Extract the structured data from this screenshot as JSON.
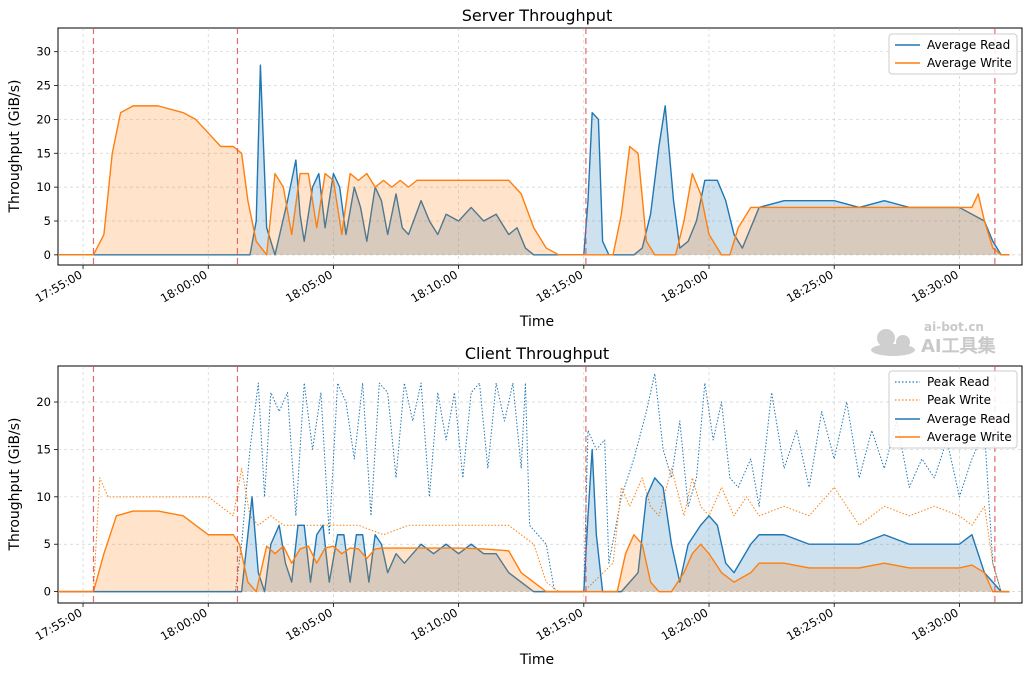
{
  "chart_data": [
    {
      "type": "area",
      "title": "Server Throughput",
      "xlabel": "Time",
      "ylabel": "Throughput (GiB/s)",
      "x_range": [
        "17:54:00",
        "18:32:30"
      ],
      "ylim": [
        -1.5,
        33.5
      ],
      "y_ticks": [
        0,
        5,
        10,
        15,
        20,
        25,
        30
      ],
      "x_ticks": [
        "17:55:00",
        "18:00:00",
        "18:05:00",
        "18:10:00",
        "18:15:00",
        "18:20:00",
        "18:25:00",
        "18:30:00"
      ],
      "grid": true,
      "legend_position": "top-right",
      "event_markers_x": [
        "17:55:25",
        "18:01:10",
        "18:15:05",
        "18:31:25"
      ],
      "series": [
        {
          "name": "Average Read",
          "color": "#1f77b4",
          "x": [
            "17:54:00",
            "17:55:30",
            "18:01:00",
            "18:01:40",
            "18:01:55",
            "18:02:05",
            "18:02:20",
            "18:02:40",
            "18:03:10",
            "18:03:30",
            "18:03:40",
            "18:03:50",
            "18:04:10",
            "18:04:25",
            "18:04:40",
            "18:05:00",
            "18:05:15",
            "18:05:30",
            "18:05:50",
            "18:06:05",
            "18:06:20",
            "18:06:40",
            "18:06:55",
            "18:07:10",
            "18:07:30",
            "18:07:45",
            "18:08:00",
            "18:08:30",
            "18:08:50",
            "18:09:10",
            "18:09:30",
            "18:10:00",
            "18:10:30",
            "18:11:00",
            "18:11:30",
            "18:12:00",
            "18:12:20",
            "18:12:40",
            "18:13:00",
            "18:15:00",
            "18:15:10",
            "18:15:20",
            "18:15:35",
            "18:15:45",
            "18:16:00",
            "18:16:30",
            "18:17:00",
            "18:17:20",
            "18:17:40",
            "18:18:00",
            "18:18:15",
            "18:18:35",
            "18:18:50",
            "18:19:10",
            "18:19:30",
            "18:19:50",
            "18:20:20",
            "18:20:40",
            "18:21:00",
            "18:21:20",
            "18:22:00",
            "18:23:00",
            "18:24:00",
            "18:25:00",
            "18:26:00",
            "18:27:00",
            "18:28:00",
            "18:29:00",
            "18:30:00",
            "18:30:30",
            "18:31:00",
            "18:31:20",
            "18:31:40",
            "18:32:00"
          ],
          "values": [
            0,
            0,
            0,
            0,
            5,
            28,
            4,
            0,
            8,
            14,
            6,
            2,
            10,
            12,
            4,
            12,
            10,
            3,
            10,
            7,
            2,
            10,
            8,
            3,
            9,
            4,
            3,
            8,
            5,
            3,
            6,
            5,
            7,
            5,
            6,
            3,
            4,
            1,
            0,
            0,
            8,
            21,
            20,
            2,
            0,
            0,
            0,
            1,
            6,
            16,
            22,
            8,
            1,
            2,
            5,
            11,
            11,
            8,
            3,
            1,
            7,
            8,
            8,
            8,
            7,
            8,
            7,
            7,
            7,
            6,
            5,
            2,
            0,
            0
          ]
        },
        {
          "name": "Average Write",
          "color": "#ff7f0e",
          "x": [
            "17:54:00",
            "17:55:25",
            "17:55:50",
            "17:56:10",
            "17:56:30",
            "17:57:00",
            "17:58:00",
            "17:59:00",
            "17:59:30",
            "18:00:00",
            "18:00:30",
            "18:01:00",
            "18:01:20",
            "18:01:35",
            "18:01:55",
            "18:02:20",
            "18:02:40",
            "18:03:00",
            "18:03:20",
            "18:03:40",
            "18:04:00",
            "18:04:20",
            "18:04:40",
            "18:05:00",
            "18:05:20",
            "18:05:40",
            "18:06:00",
            "18:06:20",
            "18:06:40",
            "18:07:00",
            "18:07:20",
            "18:07:40",
            "18:08:00",
            "18:08:20",
            "18:08:40",
            "18:09:00",
            "18:10:00",
            "18:11:00",
            "18:12:00",
            "18:12:30",
            "18:13:00",
            "18:13:30",
            "18:14:00",
            "18:15:00",
            "18:16:10",
            "18:16:30",
            "18:16:50",
            "18:17:10",
            "18:17:30",
            "18:17:50",
            "18:18:10",
            "18:18:40",
            "18:19:00",
            "18:19:20",
            "18:19:40",
            "18:20:00",
            "18:20:30",
            "18:20:50",
            "18:21:10",
            "18:21:40",
            "18:22:00",
            "18:23:00",
            "18:24:00",
            "18:25:00",
            "18:26:00",
            "18:27:00",
            "18:28:00",
            "18:29:00",
            "18:30:00",
            "18:30:30",
            "18:30:45",
            "18:31:00",
            "18:31:20",
            "18:31:40",
            "18:32:00"
          ],
          "values": [
            0,
            0,
            3,
            15,
            21,
            22,
            22,
            21,
            20,
            18,
            16,
            16,
            15,
            8,
            2,
            0,
            12,
            10,
            3,
            12,
            12,
            4,
            12,
            11,
            3,
            12,
            11,
            12,
            10,
            11,
            10,
            11,
            10,
            11,
            11,
            11,
            11,
            11,
            11,
            9,
            4,
            1,
            0,
            0,
            0,
            6,
            16,
            15,
            2,
            0,
            0,
            0,
            5,
            12,
            9,
            3,
            0,
            0,
            4,
            7,
            7,
            7,
            7,
            7,
            7,
            7,
            7,
            7,
            7,
            7,
            9,
            5,
            1,
            0,
            0
          ]
        }
      ]
    },
    {
      "type": "area",
      "title": "Client Throughput",
      "xlabel": "Time",
      "ylabel": "Throughput (GiB/s)",
      "x_range": [
        "17:54:00",
        "18:32:30"
      ],
      "ylim": [
        -1.2,
        23.8
      ],
      "y_ticks": [
        0,
        5,
        10,
        15,
        20
      ],
      "x_ticks": [
        "17:55:00",
        "18:00:00",
        "18:05:00",
        "18:10:00",
        "18:15:00",
        "18:20:00",
        "18:25:00",
        "18:30:00"
      ],
      "grid": true,
      "legend_position": "top-right",
      "event_markers_x": [
        "17:55:25",
        "18:01:10",
        "18:15:05",
        "18:31:25"
      ],
      "series": [
        {
          "name": "Peak Read",
          "color": "#1f77b4",
          "style": "dotted",
          "x": [
            "17:54:00",
            "18:01:05",
            "18:01:20",
            "18:01:40",
            "18:02:00",
            "18:02:15",
            "18:02:30",
            "18:02:50",
            "18:03:10",
            "18:03:30",
            "18:03:50",
            "18:04:10",
            "18:04:30",
            "18:04:50",
            "18:05:10",
            "18:05:30",
            "18:05:50",
            "18:06:10",
            "18:06:30",
            "18:06:50",
            "18:07:10",
            "18:07:30",
            "18:07:50",
            "18:08:10",
            "18:08:30",
            "18:08:50",
            "18:09:10",
            "18:09:30",
            "18:09:50",
            "18:10:10",
            "18:10:30",
            "18:10:50",
            "18:11:10",
            "18:11:30",
            "18:11:50",
            "18:12:10",
            "18:12:30",
            "18:12:40",
            "18:12:50",
            "18:13:10",
            "18:13:30",
            "18:13:50",
            "18:14:00",
            "18:15:00",
            "18:15:10",
            "18:15:30",
            "18:15:50",
            "18:16:00",
            "18:16:30",
            "18:17:00",
            "18:17:30",
            "18:17:50",
            "18:18:10",
            "18:18:30",
            "18:18:50",
            "18:19:10",
            "18:19:30",
            "18:19:50",
            "18:20:10",
            "18:20:30",
            "18:20:50",
            "18:21:10",
            "18:21:40",
            "18:22:00",
            "18:22:30",
            "18:23:00",
            "18:23:30",
            "18:24:00",
            "18:24:30",
            "18:25:00",
            "18:25:30",
            "18:26:00",
            "18:26:30",
            "18:27:00",
            "18:27:30",
            "18:28:00",
            "18:28:30",
            "18:29:00",
            "18:29:30",
            "18:30:00",
            "18:30:30",
            "18:31:00",
            "18:31:20",
            "18:31:40",
            "18:32:00"
          ],
          "values": [
            0,
            0,
            5,
            15,
            22,
            10,
            21,
            19,
            21,
            8,
            22,
            15,
            21,
            6,
            22,
            20,
            14,
            22,
            8,
            22,
            21,
            12,
            22,
            18,
            22,
            10,
            21,
            16,
            21,
            12,
            21,
            22,
            13,
            22,
            18,
            22,
            13,
            22,
            7,
            6,
            5,
            0,
            0,
            0,
            17,
            15,
            16,
            3,
            10,
            14,
            19,
            23,
            15,
            12,
            18,
            9,
            12,
            22,
            16,
            20,
            12,
            11,
            14,
            9,
            21,
            13,
            17,
            11,
            19,
            14,
            20,
            12,
            17,
            13,
            18,
            11,
            14,
            12,
            16,
            10,
            14,
            17,
            3,
            0,
            0
          ]
        },
        {
          "name": "Peak Write",
          "color": "#ff7f0e",
          "style": "dotted",
          "x": [
            "17:54:00",
            "17:55:25",
            "17:55:40",
            "17:56:00",
            "17:57:00",
            "17:58:00",
            "17:59:00",
            "18:00:00",
            "18:01:00",
            "18:01:20",
            "18:01:40",
            "18:02:00",
            "18:02:30",
            "18:03:00",
            "18:04:00",
            "18:05:00",
            "18:06:00",
            "18:07:00",
            "18:08:00",
            "18:09:00",
            "18:10:00",
            "18:11:00",
            "18:12:00",
            "18:12:30",
            "18:13:00",
            "18:13:30",
            "18:14:00",
            "18:15:00",
            "18:16:10",
            "18:16:30",
            "18:16:50",
            "18:17:20",
            "18:17:40",
            "18:18:00",
            "18:18:30",
            "18:19:00",
            "18:19:20",
            "18:19:40",
            "18:20:00",
            "18:20:30",
            "18:21:00",
            "18:21:30",
            "18:22:00",
            "18:23:00",
            "18:24:00",
            "18:25:00",
            "18:26:00",
            "18:27:00",
            "18:28:00",
            "18:29:00",
            "18:30:00",
            "18:30:30",
            "18:31:00",
            "18:31:20",
            "18:31:40",
            "18:32:00"
          ],
          "values": [
            0,
            0,
            12,
            10,
            10,
            10,
            10,
            10,
            8,
            13,
            8,
            7,
            8,
            7,
            7,
            7,
            7,
            6,
            7,
            7,
            7,
            7,
            7,
            6,
            5,
            1,
            0,
            0,
            3,
            11,
            9,
            12,
            9,
            8,
            13,
            8,
            12,
            9,
            8,
            11,
            8,
            10,
            8,
            9,
            8,
            11,
            7,
            9,
            8,
            9,
            8,
            7,
            9,
            3,
            0,
            0
          ]
        },
        {
          "name": "Average Read",
          "color": "#1f77b4",
          "style": "solid",
          "x": [
            "17:54:00",
            "18:01:20",
            "18:01:45",
            "18:02:00",
            "18:02:15",
            "18:02:30",
            "18:02:50",
            "18:03:05",
            "18:03:20",
            "18:03:35",
            "18:03:50",
            "18:04:05",
            "18:04:20",
            "18:04:35",
            "18:04:50",
            "18:05:10",
            "18:05:25",
            "18:05:40",
            "18:05:55",
            "18:06:10",
            "18:06:25",
            "18:06:40",
            "18:06:55",
            "18:07:10",
            "18:07:30",
            "18:07:50",
            "18:08:10",
            "18:08:30",
            "18:09:00",
            "18:09:30",
            "18:10:00",
            "18:10:30",
            "18:11:00",
            "18:11:30",
            "18:12:00",
            "18:12:30",
            "18:13:00",
            "18:15:00",
            "18:15:10",
            "18:15:20",
            "18:15:30",
            "18:15:45",
            "18:16:00",
            "18:16:30",
            "18:17:10",
            "18:17:30",
            "18:17:50",
            "18:18:10",
            "18:18:30",
            "18:18:50",
            "18:19:10",
            "18:19:40",
            "18:20:00",
            "18:20:20",
            "18:20:40",
            "18:21:00",
            "18:21:40",
            "18:22:00",
            "18:23:00",
            "18:24:00",
            "18:25:00",
            "18:26:00",
            "18:27:00",
            "18:28:00",
            "18:29:00",
            "18:30:00",
            "18:30:30",
            "18:31:00",
            "18:31:20",
            "18:31:40",
            "18:32:00"
          ],
          "values": [
            0,
            0,
            10,
            2,
            0,
            5,
            7,
            3,
            1,
            7,
            7,
            1,
            6,
            7,
            1,
            6,
            6,
            1,
            6,
            6,
            1,
            6,
            5,
            2,
            4,
            3,
            4,
            5,
            4,
            5,
            4,
            5,
            4,
            4,
            2,
            1,
            0,
            0,
            8,
            15,
            6,
            0,
            0,
            0,
            2,
            10,
            12,
            11,
            5,
            1,
            5,
            7,
            8,
            7,
            3,
            2,
            5,
            6,
            6,
            5,
            5,
            5,
            6,
            5,
            5,
            5,
            6,
            2,
            1,
            0,
            0
          ]
        },
        {
          "name": "Average Write",
          "color": "#ff7f0e",
          "style": "solid",
          "x": [
            "17:54:00",
            "17:55:25",
            "17:55:50",
            "17:56:20",
            "17:57:00",
            "17:58:00",
            "17:59:00",
            "17:59:30",
            "18:00:00",
            "18:01:00",
            "18:01:15",
            "18:01:35",
            "18:01:55",
            "18:02:20",
            "18:02:40",
            "18:03:00",
            "18:03:20",
            "18:03:40",
            "18:04:00",
            "18:04:20",
            "18:04:40",
            "18:05:00",
            "18:05:20",
            "18:05:40",
            "18:06:00",
            "18:06:20",
            "18:06:40",
            "18:07:00",
            "18:08:00",
            "18:09:00",
            "18:10:00",
            "18:11:00",
            "18:12:00",
            "18:12:30",
            "18:13:00",
            "18:13:30",
            "18:15:00",
            "18:16:20",
            "18:16:40",
            "18:17:00",
            "18:17:20",
            "18:17:40",
            "18:18:00",
            "18:18:30",
            "18:19:00",
            "18:19:20",
            "18:19:40",
            "18:20:00",
            "18:20:30",
            "18:21:00",
            "18:21:40",
            "18:22:00",
            "18:23:00",
            "18:24:00",
            "18:25:00",
            "18:26:00",
            "18:27:00",
            "18:28:00",
            "18:29:00",
            "18:30:00",
            "18:30:30",
            "18:31:00",
            "18:31:20",
            "18:31:40",
            "18:32:00"
          ],
          "values": [
            0,
            0,
            4,
            8,
            8.5,
            8.5,
            8,
            7,
            6,
            6,
            5,
            1,
            0,
            4.8,
            4,
            4.8,
            3,
            4.5,
            4.8,
            3,
            4.6,
            4.8,
            4,
            4.6,
            4.5,
            3.5,
            4.5,
            4.6,
            4.6,
            4.6,
            4.6,
            4.5,
            4.3,
            2,
            1,
            0,
            0,
            0,
            4,
            6,
            5,
            1,
            0,
            0,
            2,
            4,
            5,
            4,
            2,
            1,
            2,
            3,
            3,
            2.5,
            2.5,
            2.5,
            3,
            2.5,
            2.5,
            2.5,
            2.8,
            2,
            0,
            0,
            0
          ]
        }
      ]
    }
  ],
  "watermark": {
    "line1": "ai-bot.cn",
    "line2": "AI工具集"
  }
}
